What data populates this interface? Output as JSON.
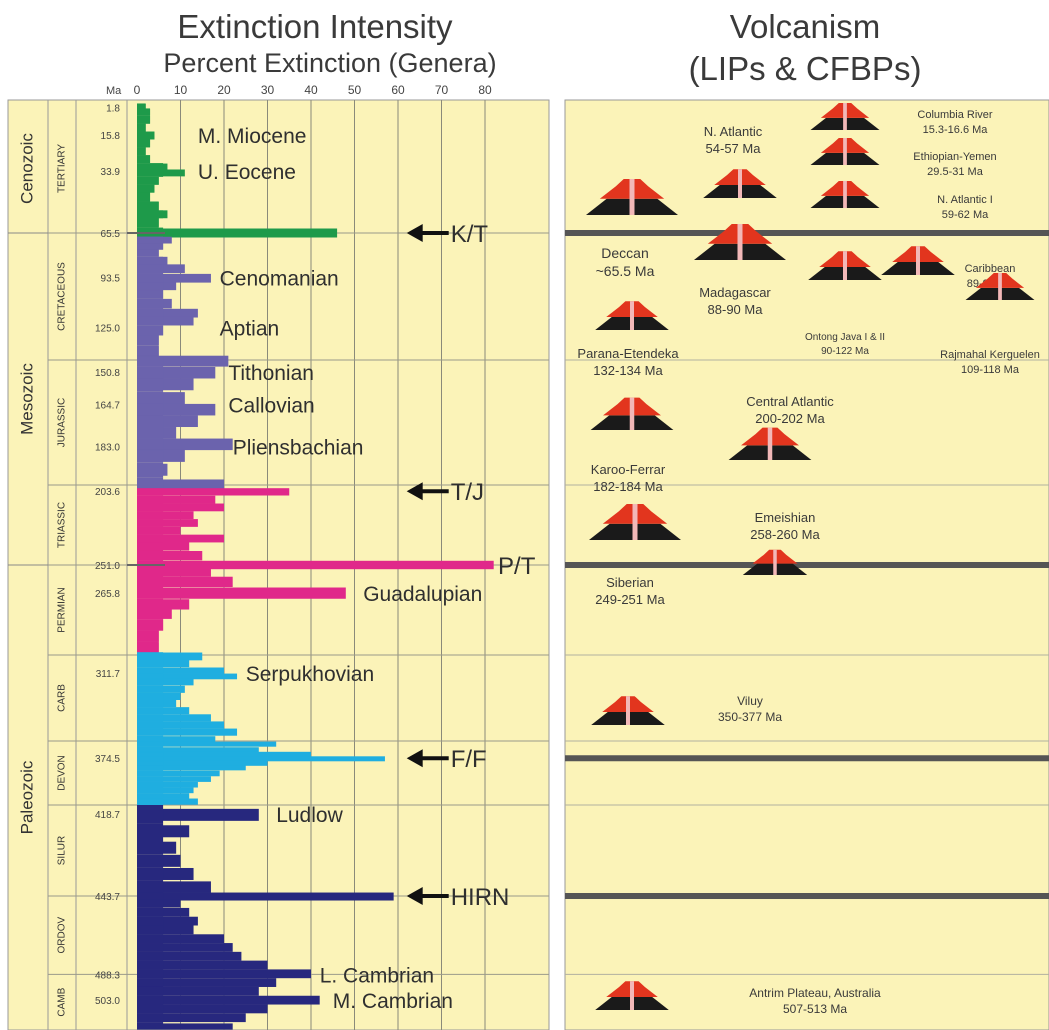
{
  "chart_data": {
    "type": "bar",
    "panels": [
      {
        "title": "Extinction Intensity",
        "subtitle": "Percent Extinction (Genera)"
      },
      {
        "title": "Volcanism",
        "subtitle": "(LIPs & CFBPs)"
      }
    ],
    "x_axis": {
      "unit_label": "Ma",
      "ticks": [
        0,
        10,
        20,
        30,
        40,
        50,
        60,
        70,
        80
      ],
      "range": [
        0,
        94
      ]
    },
    "y_axis": {
      "range_ma": [
        0,
        520
      ]
    },
    "eras": [
      {
        "label": "Cenozoic",
        "from": 0,
        "to": 65.5
      },
      {
        "label": "Mesozoic",
        "from": 65.5,
        "to": 251
      },
      {
        "label": "Paleozoic",
        "from": 251,
        "to": 520
      }
    ],
    "periods": [
      {
        "label": "TERTIARY",
        "from": 0,
        "to": 65.5,
        "color": "#1e9a4a"
      },
      {
        "label": "CRETACEOUS",
        "from": 65.5,
        "to": 145.5,
        "color": "#6b63ad"
      },
      {
        "label": "JURASSIC",
        "from": 145.5,
        "to": 199.6,
        "color": "#6b63ad"
      },
      {
        "label": "TRIASSIC",
        "from": 199.6,
        "to": 251,
        "color": "#e0288a"
      },
      {
        "label": "PERMIAN",
        "from": 251,
        "to": 299,
        "color": "#e0288a"
      },
      {
        "label": "CARB",
        "from": 299,
        "to": 359.2,
        "color": "#1faee0"
      },
      {
        "label": "DEVON",
        "from": 359.2,
        "to": 416,
        "color": "#1faee0"
      },
      {
        "label": "SILUR",
        "from": 416,
        "to": 443.7,
        "color": "#27287e"
      },
      {
        "label": "ORDOV",
        "from": 443.7,
        "to": 488.3,
        "color": "#27287e"
      },
      {
        "label": "CAMB",
        "from": 488.3,
        "to": 520,
        "color": "#27287e"
      }
    ],
    "age_labels": [
      {
        "text": "1.8",
        "ma": 1.8
      },
      {
        "text": "15.8",
        "ma": 15.8
      },
      {
        "text": "33.9",
        "ma": 33.9
      },
      {
        "text": "65.5",
        "ma": 65.5
      },
      {
        "text": "93.5",
        "ma": 93.5
      },
      {
        "text": "125.0",
        "ma": 125
      },
      {
        "text": "150.8",
        "ma": 150.8
      },
      {
        "text": "164.7",
        "ma": 164.7
      },
      {
        "text": "183.0",
        "ma": 183
      },
      {
        "text": "203.6",
        "ma": 203.6
      },
      {
        "text": "251.0",
        "ma": 251
      },
      {
        "text": "265.8",
        "ma": 265.8
      },
      {
        "text": "311.7",
        "ma": 311.7
      },
      {
        "text": "374.5",
        "ma": 374.5
      },
      {
        "text": "418.7",
        "ma": 418.7
      },
      {
        "text": "443.7",
        "ma": 443.7
      },
      {
        "text": "488.3",
        "ma": 488.3
      },
      {
        "text": "503.0",
        "ma": 503
      }
    ],
    "bars": [
      {
        "ma": 1,
        "value": 2
      },
      {
        "ma": 4,
        "value": 3
      },
      {
        "ma": 8,
        "value": 3
      },
      {
        "ma": 12,
        "value": 2
      },
      {
        "ma": 16,
        "value": 4
      },
      {
        "ma": 20,
        "value": 3
      },
      {
        "ma": 24,
        "value": 2
      },
      {
        "ma": 28,
        "value": 3
      },
      {
        "ma": 32,
        "value": 7
      },
      {
        "ma": 35,
        "value": 11
      },
      {
        "ma": 39,
        "value": 5
      },
      {
        "ma": 43,
        "value": 4
      },
      {
        "ma": 47,
        "value": 3
      },
      {
        "ma": 52,
        "value": 5
      },
      {
        "ma": 56,
        "value": 7
      },
      {
        "ma": 60,
        "value": 5
      },
      {
        "ma": 65.5,
        "value": 46
      },
      {
        "ma": 70,
        "value": 8
      },
      {
        "ma": 74,
        "value": 6
      },
      {
        "ma": 78,
        "value": 5
      },
      {
        "ma": 83,
        "value": 7
      },
      {
        "ma": 88,
        "value": 11
      },
      {
        "ma": 94,
        "value": 17
      },
      {
        "ma": 99,
        "value": 9
      },
      {
        "ma": 104,
        "value": 6
      },
      {
        "ma": 110,
        "value": 8
      },
      {
        "ma": 116,
        "value": 14
      },
      {
        "ma": 121,
        "value": 13
      },
      {
        "ma": 127,
        "value": 6
      },
      {
        "ma": 133,
        "value": 5
      },
      {
        "ma": 140,
        "value": 5
      },
      {
        "ma": 146,
        "value": 21
      },
      {
        "ma": 151,
        "value": 18
      },
      {
        "ma": 156,
        "value": 13
      },
      {
        "ma": 162,
        "value": 11
      },
      {
        "ma": 167,
        "value": 18
      },
      {
        "ma": 172,
        "value": 14
      },
      {
        "ma": 177,
        "value": 9
      },
      {
        "ma": 182,
        "value": 22
      },
      {
        "ma": 187,
        "value": 11
      },
      {
        "ma": 193,
        "value": 7
      },
      {
        "ma": 199.6,
        "value": 20
      },
      {
        "ma": 204,
        "value": 35
      },
      {
        "ma": 209,
        "value": 18
      },
      {
        "ma": 214,
        "value": 20
      },
      {
        "ma": 219,
        "value": 13
      },
      {
        "ma": 224,
        "value": 14
      },
      {
        "ma": 229,
        "value": 10
      },
      {
        "ma": 234,
        "value": 20
      },
      {
        "ma": 239,
        "value": 12
      },
      {
        "ma": 245,
        "value": 15
      },
      {
        "ma": 251,
        "value": 82
      },
      {
        "ma": 255,
        "value": 17
      },
      {
        "ma": 260,
        "value": 22
      },
      {
        "ma": 266,
        "value": 48
      },
      {
        "ma": 272,
        "value": 12
      },
      {
        "ma": 277,
        "value": 8
      },
      {
        "ma": 283,
        "value": 6
      },
      {
        "ma": 289,
        "value": 5
      },
      {
        "ma": 295,
        "value": 5
      },
      {
        "ma": 300,
        "value": 15
      },
      {
        "ma": 305,
        "value": 12
      },
      {
        "ma": 310,
        "value": 20
      },
      {
        "ma": 314,
        "value": 23
      },
      {
        "ma": 318,
        "value": 13
      },
      {
        "ma": 323,
        "value": 11
      },
      {
        "ma": 328,
        "value": 10
      },
      {
        "ma": 333,
        "value": 9
      },
      {
        "ma": 338,
        "value": 12
      },
      {
        "ma": 343,
        "value": 17
      },
      {
        "ma": 348,
        "value": 20
      },
      {
        "ma": 353,
        "value": 23
      },
      {
        "ma": 358,
        "value": 18
      },
      {
        "ma": 362,
        "value": 32
      },
      {
        "ma": 367,
        "value": 28
      },
      {
        "ma": 371,
        "value": 40
      },
      {
        "ma": 375,
        "value": 57
      },
      {
        "ma": 379,
        "value": 30
      },
      {
        "ma": 383,
        "value": 25
      },
      {
        "ma": 388,
        "value": 19
      },
      {
        "ma": 393,
        "value": 17
      },
      {
        "ma": 398,
        "value": 14
      },
      {
        "ma": 403,
        "value": 13
      },
      {
        "ma": 408,
        "value": 12
      },
      {
        "ma": 413,
        "value": 14
      },
      {
        "ma": 419,
        "value": 28
      },
      {
        "ma": 424,
        "value": 12
      },
      {
        "ma": 429,
        "value": 9
      },
      {
        "ma": 433,
        "value": 10
      },
      {
        "ma": 437,
        "value": 13
      },
      {
        "ma": 441,
        "value": 17
      },
      {
        "ma": 444,
        "value": 59
      },
      {
        "ma": 448,
        "value": 10
      },
      {
        "ma": 453,
        "value": 12
      },
      {
        "ma": 458,
        "value": 14
      },
      {
        "ma": 463,
        "value": 13
      },
      {
        "ma": 468,
        "value": 20
      },
      {
        "ma": 473,
        "value": 22
      },
      {
        "ma": 478,
        "value": 24
      },
      {
        "ma": 483,
        "value": 30
      },
      {
        "ma": 488,
        "value": 40
      },
      {
        "ma": 493,
        "value": 32
      },
      {
        "ma": 498,
        "value": 28
      },
      {
        "ma": 503,
        "value": 42
      },
      {
        "ma": 508,
        "value": 30
      },
      {
        "ma": 513,
        "value": 25
      },
      {
        "ma": 518,
        "value": 22
      }
    ],
    "stage_labels": [
      {
        "text": "M. Miocene",
        "ma": 15.8,
        "x": 14
      },
      {
        "text": "U. Eocene",
        "ma": 33.9,
        "x": 14
      },
      {
        "text": "Cenomanian",
        "ma": 93.5,
        "x": 19
      },
      {
        "text": "Aptian",
        "ma": 125,
        "x": 19
      },
      {
        "text": "Tithonian",
        "ma": 150.8,
        "x": 21
      },
      {
        "text": "Callovian",
        "ma": 164.7,
        "x": 21
      },
      {
        "text": "Pliensbachian",
        "ma": 183,
        "x": 22
      },
      {
        "text": "Guadalupian",
        "ma": 265.8,
        "x": 52
      },
      {
        "text": "Serpukhovian",
        "ma": 311.7,
        "x": 25
      },
      {
        "text": "Ludlow",
        "ma": 418.7,
        "x": 32
      },
      {
        "text": "L. Cambrian",
        "ma": 488.3,
        "x": 42
      },
      {
        "text": "M. Cambrian",
        "ma": 503,
        "x": 45
      }
    ],
    "events": [
      {
        "text": "K/T",
        "ma": 65.5,
        "x": 62,
        "arrow": true
      },
      {
        "text": "T/J",
        "ma": 203.6,
        "x": 62,
        "arrow": true
      },
      {
        "text": "P/T",
        "ma": 251,
        "x": 83,
        "arrow": false
      },
      {
        "text": "F/F",
        "ma": 374.5,
        "x": 62,
        "arrow": true
      },
      {
        "text": "HIRN",
        "ma": 443.7,
        "x": 62,
        "arrow": true
      }
    ],
    "lips": [
      {
        "name": "N. Atlantic",
        "age": "54-57 Ma",
        "range": [
          54,
          57
        ]
      },
      {
        "name": "Columbia River",
        "age": "15.3-16.6 Ma",
        "range": [
          15.3,
          16.6
        ]
      },
      {
        "name": "Ethiopian-Yemen",
        "age": "29.5-31 Ma",
        "range": [
          29.5,
          31
        ]
      },
      {
        "name": "N. Atlantic I",
        "age": "59-62 Ma",
        "range": [
          59,
          62
        ]
      },
      {
        "name": "Deccan",
        "age": "~65.5 Ma",
        "range": [
          65.5,
          65.5
        ]
      },
      {
        "name": "Madagascar",
        "age": "88-90 Ma",
        "range": [
          88,
          90
        ]
      },
      {
        "name": "Caribbean",
        "age": "89-90 Ma",
        "range": [
          89,
          90
        ]
      },
      {
        "name": "Ontong Java I & II",
        "age": "90-122 Ma",
        "range": [
          90,
          122
        ]
      },
      {
        "name": "Rajmahal Kerguelen",
        "age": "109-118 Ma",
        "range": [
          109,
          118
        ]
      },
      {
        "name": "Parana-Etendeka",
        "age": "132-134 Ma",
        "range": [
          132,
          134
        ]
      },
      {
        "name": "Karoo-Ferrar",
        "age": "182-184 Ma",
        "range": [
          182,
          184
        ]
      },
      {
        "name": "Central Atlantic",
        "age": "200-202 Ma",
        "range": [
          200,
          202
        ]
      },
      {
        "name": "Emeishian",
        "age": "258-260 Ma",
        "range": [
          258,
          260
        ]
      },
      {
        "name": "Siberian",
        "age": "249-251 Ma",
        "range": [
          249,
          251
        ]
      },
      {
        "name": "Viluy",
        "age": "350-377 Ma",
        "range": [
          350,
          377
        ]
      },
      {
        "name": "Antrim Plateau, Australia",
        "age": "507-513 Ma",
        "range": [
          507,
          513
        ]
      }
    ],
    "grid": true,
    "colors": {
      "background": "#fbf3b8",
      "boundary_line": "#555555",
      "volcano_top": "#e2351e",
      "volcano_base": "#1a1a1a",
      "conduit": "#f2b8b8",
      "arrow": "#111111"
    }
  }
}
